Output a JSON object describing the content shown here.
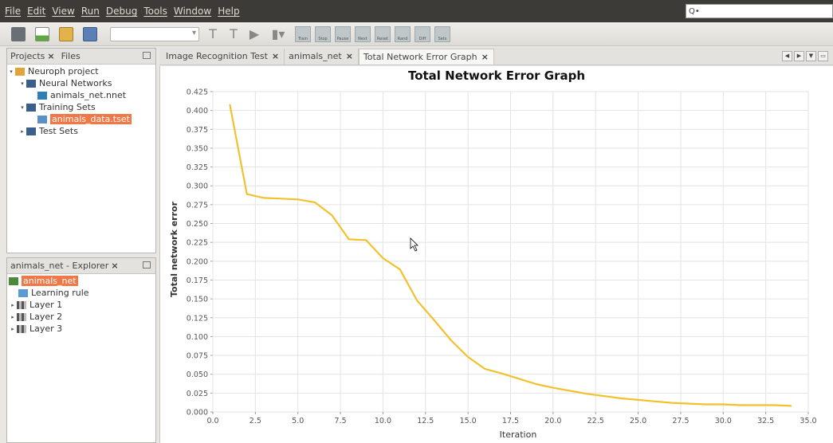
{
  "menu": [
    "File",
    "Edit",
    "View",
    "Run",
    "Debug",
    "Tools",
    "Window",
    "Help"
  ],
  "search": {
    "icon": "Q•",
    "placeholder": ""
  },
  "toolbar": {
    "buttons": [
      "Train",
      "Stop",
      "Pause",
      "Next",
      "Reset",
      "Rand",
      "Diff",
      "Sets"
    ]
  },
  "projects_panel": {
    "tabs": [
      "Projects",
      "Files"
    ],
    "tree": [
      {
        "label": "Neuroph project",
        "level": 0,
        "expanded": true
      },
      {
        "label": "Neural Networks",
        "level": 1,
        "expanded": true
      },
      {
        "label": "animals_net.nnet",
        "level": 2
      },
      {
        "label": "Training Sets",
        "level": 1,
        "expanded": true
      },
      {
        "label": "animals_data.tset",
        "level": 2,
        "selected": true
      },
      {
        "label": "Test Sets",
        "level": 1,
        "expanded": false
      }
    ]
  },
  "explorer_panel": {
    "title": "animals_net - Explorer",
    "tree": [
      {
        "label": "animals_net",
        "selected": true
      },
      {
        "label": "Learning rule"
      },
      {
        "label": "Layer 1"
      },
      {
        "label": "Layer 2"
      },
      {
        "label": "Layer 3"
      }
    ]
  },
  "editor_tabs": [
    "Image Recognition Test",
    "animals_net",
    "Total Network Error Graph"
  ],
  "colors": {
    "accent": "#f07746",
    "line": "#f2c12e",
    "menubar": "#3c3b37"
  },
  "chart_data": {
    "type": "line",
    "title": "Total Network Error Graph",
    "xlabel": "Iteration",
    "ylabel": "Total network error",
    "xlim": [
      0,
      35
    ],
    "ylim": [
      0,
      0.425
    ],
    "xticks": [
      "0.0",
      "2.5",
      "5.0",
      "7.5",
      "10.0",
      "12.5",
      "15.0",
      "17.5",
      "20.0",
      "22.5",
      "25.0",
      "27.5",
      "30.0",
      "32.5",
      "35.0"
    ],
    "yticks": [
      "0.000",
      "0.025",
      "0.050",
      "0.075",
      "0.100",
      "0.125",
      "0.150",
      "0.175",
      "0.200",
      "0.225",
      "0.250",
      "0.275",
      "0.300",
      "0.325",
      "0.350",
      "0.375",
      "0.400",
      "0.425"
    ],
    "grid": true,
    "series": [
      {
        "x": [
          1,
          2,
          3,
          4,
          5,
          6,
          7,
          8,
          9,
          10,
          11,
          12,
          13,
          14,
          15,
          16,
          17,
          18,
          19,
          20,
          21,
          22,
          23,
          24,
          25,
          26,
          27,
          28,
          29,
          30,
          31,
          32,
          33,
          34
        ],
        "values": [
          0.408,
          0.289,
          0.284,
          0.283,
          0.282,
          0.278,
          0.261,
          0.229,
          0.228,
          0.204,
          0.189,
          0.148,
          0.122,
          0.095,
          0.073,
          0.057,
          0.051,
          0.044,
          0.037,
          0.032,
          0.028,
          0.024,
          0.021,
          0.018,
          0.016,
          0.014,
          0.012,
          0.011,
          0.01,
          0.01,
          0.009,
          0.009,
          0.009,
          0.008
        ]
      }
    ]
  }
}
